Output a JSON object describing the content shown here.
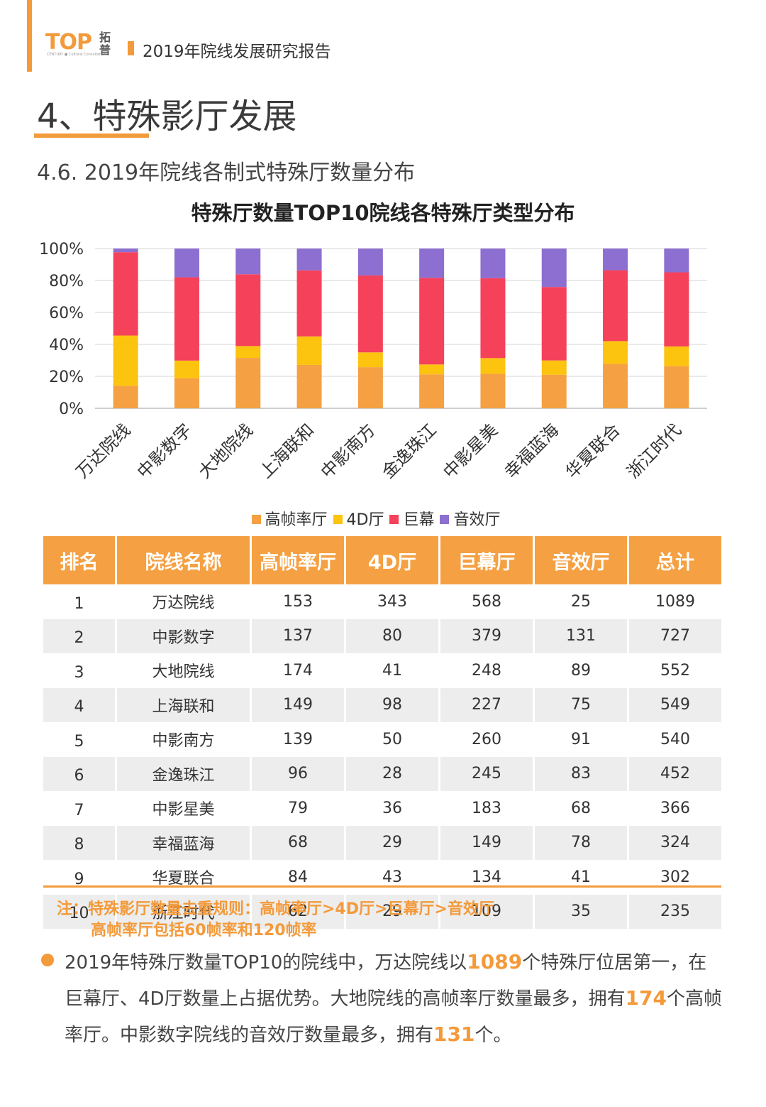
{
  "header": {
    "logo_text": "TOP",
    "logo_cn": "拓普",
    "logo_small": "CENTURY ● Cultural Consultation",
    "report_title": "2019年院线发展研究报告"
  },
  "section_title": "4、特殊影厅发展",
  "subsection_title": "4.6. 2019年院线各制式特殊厅数量分布",
  "colors": {
    "accent": "#f39a3a",
    "high_frame": "#f5a042",
    "fourd": "#fcc30f",
    "giant": "#f5415a",
    "sound": "#8c6fd0"
  },
  "chart_data": {
    "type": "bar",
    "stacked": "percent",
    "title": "特殊厅数量TOP10院线各特殊厅类型分布",
    "categories": [
      "万达院线",
      "中影数字",
      "大地院线",
      "上海联和",
      "中影南方",
      "金逸珠江",
      "中影星美",
      "幸福蓝海",
      "华夏联合",
      "浙江时代"
    ],
    "series": [
      {
        "name": "高帧率厅",
        "color": "#f5a042",
        "values": [
          153,
          137,
          174,
          149,
          139,
          96,
          79,
          68,
          84,
          62
        ]
      },
      {
        "name": "4D厅",
        "color": "#fcc30f",
        "values": [
          343,
          80,
          41,
          98,
          50,
          28,
          36,
          29,
          43,
          29
        ]
      },
      {
        "name": "巨幕",
        "color": "#f5415a",
        "values": [
          568,
          379,
          248,
          227,
          260,
          245,
          183,
          149,
          134,
          109
        ]
      },
      {
        "name": "音效厅",
        "color": "#8c6fd0",
        "values": [
          25,
          131,
          89,
          75,
          91,
          83,
          68,
          78,
          41,
          35
        ]
      }
    ],
    "yticks": [
      "0%",
      "20%",
      "40%",
      "60%",
      "80%",
      "100%"
    ],
    "ylim": [
      0,
      100
    ],
    "grid": true,
    "legend_position": "bottom"
  },
  "table": {
    "headers": [
      "排名",
      "院线名称",
      "高帧率厅",
      "4D厅",
      "巨幕厅",
      "音效厅",
      "总计"
    ],
    "rows": [
      [
        "1",
        "万达院线",
        "153",
        "343",
        "568",
        "25",
        "1089"
      ],
      [
        "2",
        "中影数字",
        "137",
        "80",
        "379",
        "131",
        "727"
      ],
      [
        "3",
        "大地院线",
        "174",
        "41",
        "248",
        "89",
        "552"
      ],
      [
        "4",
        "上海联和",
        "149",
        "98",
        "227",
        "75",
        "549"
      ],
      [
        "5",
        "中影南方",
        "139",
        "50",
        "260",
        "91",
        "540"
      ],
      [
        "6",
        "金逸珠江",
        "96",
        "28",
        "245",
        "83",
        "452"
      ],
      [
        "7",
        "中影星美",
        "79",
        "36",
        "183",
        "68",
        "366"
      ],
      [
        "8",
        "幸福蓝海",
        "68",
        "29",
        "149",
        "78",
        "324"
      ],
      [
        "9",
        "华夏联合",
        "84",
        "43",
        "134",
        "41",
        "302"
      ],
      [
        "10",
        "浙江时代",
        "62",
        "29",
        "109",
        "35",
        "235"
      ]
    ]
  },
  "note": {
    "line1": "注：特殊影厅数量去重规则：高帧率厅>4D厅>巨幕厅>音效厅",
    "line2": "高帧率厅包括60帧率和120帧率"
  },
  "summary": {
    "p1": "2019年特殊厅数量TOP10的院线中，万达院线以",
    "h1": "1089",
    "p2": "个特殊厅位居第一，在巨幕厅、4D厅数量上占据优势。大地院线的高帧率厅数量最多，拥有",
    "h2": "174",
    "p3": "个高帧率厅。中影数字院线的音效厅数量最多，拥有",
    "h3": "131",
    "p4": "个。"
  }
}
